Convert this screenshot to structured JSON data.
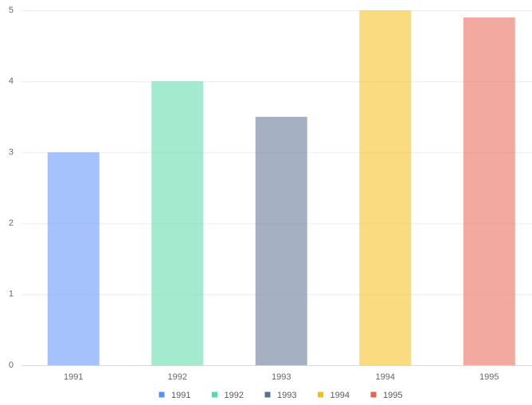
{
  "chart_data": {
    "type": "bar",
    "categories": [
      "1991",
      "1992",
      "1993",
      "1994",
      "1995"
    ],
    "values": [
      3,
      4,
      3.5,
      5,
      4.9
    ],
    "colors": [
      "#5b8ff9",
      "#5ad8a6",
      "#5d7092",
      "#f6bd16",
      "#e86452"
    ],
    "ylim": [
      0,
      5
    ],
    "yticks": [
      0,
      1,
      2,
      3,
      4,
      5
    ],
    "grid": true,
    "legend": "bottom"
  }
}
